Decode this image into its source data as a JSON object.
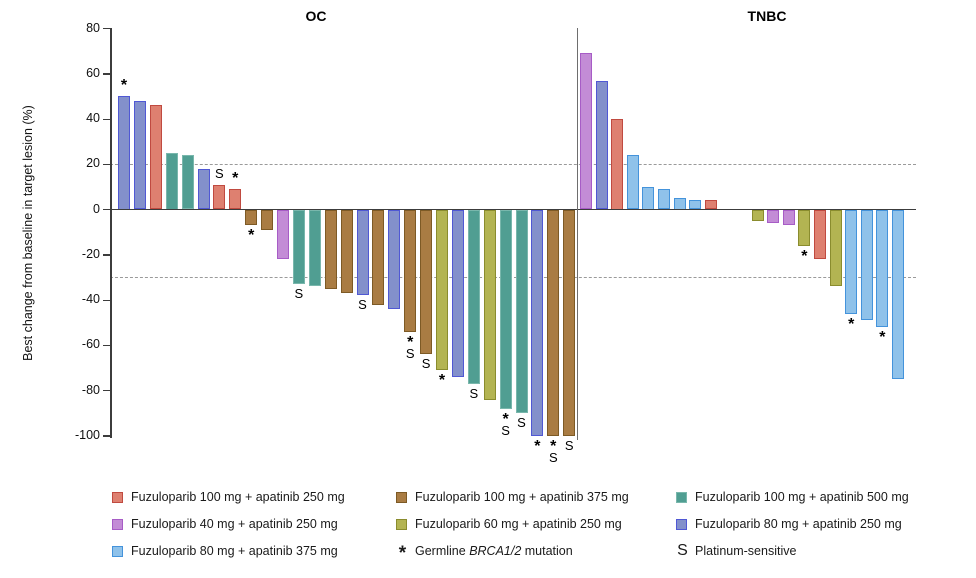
{
  "chart_data": {
    "type": "bar",
    "subtype": "waterfall",
    "ylabel": "Best change from baseline in target lesion (%)",
    "ylim": [
      -100,
      80
    ],
    "yticks": [
      80,
      60,
      40,
      20,
      0,
      -20,
      -40,
      -60,
      -80,
      -100
    ],
    "reference_lines": [
      20,
      -30
    ],
    "grid": "dashed-reference-only",
    "legend_position": "bottom",
    "groups": [
      {
        "title": "OC",
        "bars": [
          {
            "value": 50,
            "color": "blueviolet",
            "mark": "*"
          },
          {
            "value": 48,
            "color": "blueviolet",
            "mark": ""
          },
          {
            "value": 46,
            "color": "red",
            "mark": ""
          },
          {
            "value": 25,
            "color": "teal",
            "mark": ""
          },
          {
            "value": 24,
            "color": "teal",
            "mark": ""
          },
          {
            "value": 18,
            "color": "blueviolet",
            "mark": ""
          },
          {
            "value": 11,
            "color": "red",
            "mark": "S"
          },
          {
            "value": 9,
            "color": "red",
            "mark": "*"
          },
          {
            "value": -7,
            "color": "brown",
            "mark": "*"
          },
          {
            "value": -9,
            "color": "brown",
            "mark": ""
          },
          {
            "value": -22,
            "color": "purple",
            "mark": ""
          },
          {
            "value": -33,
            "color": "teal",
            "mark": "S"
          },
          {
            "value": -34,
            "color": "teal",
            "mark": ""
          },
          {
            "value": -35,
            "color": "brown",
            "mark": ""
          },
          {
            "value": -37,
            "color": "brown",
            "mark": ""
          },
          {
            "value": -38,
            "color": "blueviolet",
            "mark": "S"
          },
          {
            "value": -42,
            "color": "brown",
            "mark": ""
          },
          {
            "value": -44,
            "color": "blueviolet",
            "mark": ""
          },
          {
            "value": -54,
            "color": "brown",
            "mark": "*S"
          },
          {
            "value": -64,
            "color": "brown",
            "mark": "S"
          },
          {
            "value": -71,
            "color": "olive",
            "mark": "*"
          },
          {
            "value": -74,
            "color": "blueviolet",
            "mark": ""
          },
          {
            "value": -77,
            "color": "teal",
            "mark": "S"
          },
          {
            "value": -84,
            "color": "olive",
            "mark": ""
          },
          {
            "value": -88,
            "color": "teal",
            "mark": "*S"
          },
          {
            "value": -90,
            "color": "teal",
            "mark": "S"
          },
          {
            "value": -100,
            "color": "blueviolet",
            "mark": "*"
          },
          {
            "value": -100,
            "color": "brown",
            "mark": "*S"
          },
          {
            "value": -100,
            "color": "brown",
            "mark": "S"
          }
        ]
      },
      {
        "title": "TNBC",
        "gap_after_index": 8,
        "gap_slots": 2,
        "bars": [
          {
            "value": 69,
            "color": "purple",
            "mark": ""
          },
          {
            "value": 57,
            "color": "blueviolet",
            "mark": ""
          },
          {
            "value": 40,
            "color": "red",
            "mark": ""
          },
          {
            "value": 24,
            "color": "lightblue",
            "mark": ""
          },
          {
            "value": 10,
            "color": "lightblue",
            "mark": ""
          },
          {
            "value": 9,
            "color": "lightblue",
            "mark": ""
          },
          {
            "value": 5,
            "color": "lightblue",
            "mark": ""
          },
          {
            "value": 4,
            "color": "lightblue",
            "mark": ""
          },
          {
            "value": 4,
            "color": "red",
            "mark": ""
          },
          {
            "value": -5,
            "color": "olive",
            "mark": ""
          },
          {
            "value": -6,
            "color": "purple",
            "mark": ""
          },
          {
            "value": -7,
            "color": "purple",
            "mark": ""
          },
          {
            "value": -16,
            "color": "olive",
            "mark": "*"
          },
          {
            "value": -22,
            "color": "red",
            "mark": ""
          },
          {
            "value": -34,
            "color": "olive",
            "mark": ""
          },
          {
            "value": -46,
            "color": "lightblue",
            "mark": "*"
          },
          {
            "value": -49,
            "color": "lightblue",
            "mark": ""
          },
          {
            "value": -52,
            "color": "lightblue",
            "mark": "*"
          },
          {
            "value": -75,
            "color": "lightblue",
            "mark": ""
          }
        ]
      }
    ]
  },
  "colors": {
    "red": {
      "fill": "#DE8070",
      "stroke": "#C04A40"
    },
    "purple": {
      "fill": "#C38CD6",
      "stroke": "#A75CC6"
    },
    "lightblue": {
      "fill": "#8FC2EA",
      "stroke": "#4493DB"
    },
    "brown": {
      "fill": "#A97C43",
      "stroke": "#7D5A25"
    },
    "olive": {
      "fill": "#B3B452",
      "stroke": "#8A8C2E"
    },
    "teal": {
      "fill": "#509E92",
      "stroke": "#79B7AC"
    },
    "blueviolet": {
      "fill": "#8390CB",
      "stroke": "#5058D4"
    }
  },
  "legend": {
    "columns": [
      {
        "items": [
          {
            "swatch": "red",
            "label": "Fuzuloparib 100 mg + apatinib 250 mg"
          },
          {
            "swatch": "purple",
            "label": "Fuzuloparib 40 mg + apatinib 250 mg"
          },
          {
            "swatch": "lightblue",
            "label": "Fuzuloparib 80 mg + apatinib 375 mg"
          }
        ]
      },
      {
        "items": [
          {
            "swatch": "brown",
            "label": "Fuzuloparib 100 mg + apatinib 375 mg"
          },
          {
            "swatch": "olive",
            "label": "Fuzuloparib 60 mg + apatinib 250 mg"
          },
          {
            "symbol": "*",
            "label_parts": [
              "Germline ",
              "BRCA1/2",
              " mutation"
            ],
            "italic_part": 1
          }
        ]
      },
      {
        "items": [
          {
            "swatch": "teal",
            "label": "Fuzuloparib 100 mg + apatinib 500 mg"
          },
          {
            "swatch": "blueviolet",
            "label": "Fuzuloparib 80 mg + apatinib 250 mg"
          },
          {
            "symbol": "S",
            "label": "Platinum-sensitive"
          }
        ]
      }
    ]
  }
}
